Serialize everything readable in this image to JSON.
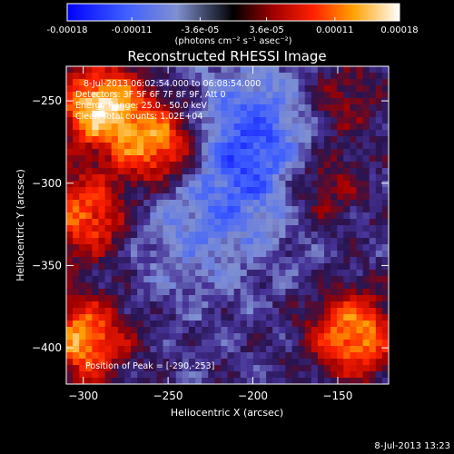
{
  "chart_data": {
    "type": "heatmap",
    "title": "Reconstructed RHESSI Image",
    "xlabel": "Heliocentric X (arcsec)",
    "ylabel": "Heliocentric Y (arcsec)",
    "xlim": [
      -310,
      -120
    ],
    "ylim": [
      -422,
      -229
    ],
    "xticks": [
      -300,
      -250,
      -200,
      -150
    ],
    "yticks": [
      -250,
      -300,
      -350,
      -400
    ],
    "colorbar": {
      "ticks": [
        "-0.00018",
        "-0.00011",
        "-3.6e-05",
        "3.6e-05",
        "0.00011",
        "0.00018"
      ],
      "unit_label": "(photons cm⁻² s⁻¹ asec⁻²)",
      "range": [
        -0.00018,
        0.00018
      ]
    },
    "annotations": [
      "8-Jul-2013 06:02:54.000 to 06:08:54.000",
      "Detectors: 3F 5F 6F 7F 8F 9F, Att 0",
      "Energy Range: 25.0 - 50.0 keV",
      "Clean   Total counts: 1.02E+04"
    ],
    "peak_label": "Position of Peak = [-290,-253]",
    "peak": {
      "x": -290,
      "y": -253
    },
    "bright_regions": [
      {
        "x": -290,
        "y": -253,
        "level": 0.00018
      },
      {
        "x": -255,
        "y": -277,
        "level": 0.00016
      },
      {
        "x": -298,
        "y": -320,
        "level": 0.00013
      },
      {
        "x": -300,
        "y": -395,
        "level": 0.00015
      },
      {
        "x": -140,
        "y": -392,
        "level": 0.00015
      },
      {
        "x": -160,
        "y": -300,
        "level": 8e-05
      },
      {
        "x": -150,
        "y": -250,
        "level": 7e-05
      }
    ],
    "dim_regions": [
      {
        "x": -205,
        "y": -295,
        "level": -6e-05
      },
      {
        "x": -195,
        "y": -265,
        "level": -7e-05
      },
      {
        "x": -240,
        "y": -330,
        "level": -4e-05
      }
    ]
  },
  "footer": {
    "timestamp": "8-Jul-2013 13:23"
  },
  "colors": {
    "background": "#000000",
    "text": "#ffffff"
  }
}
